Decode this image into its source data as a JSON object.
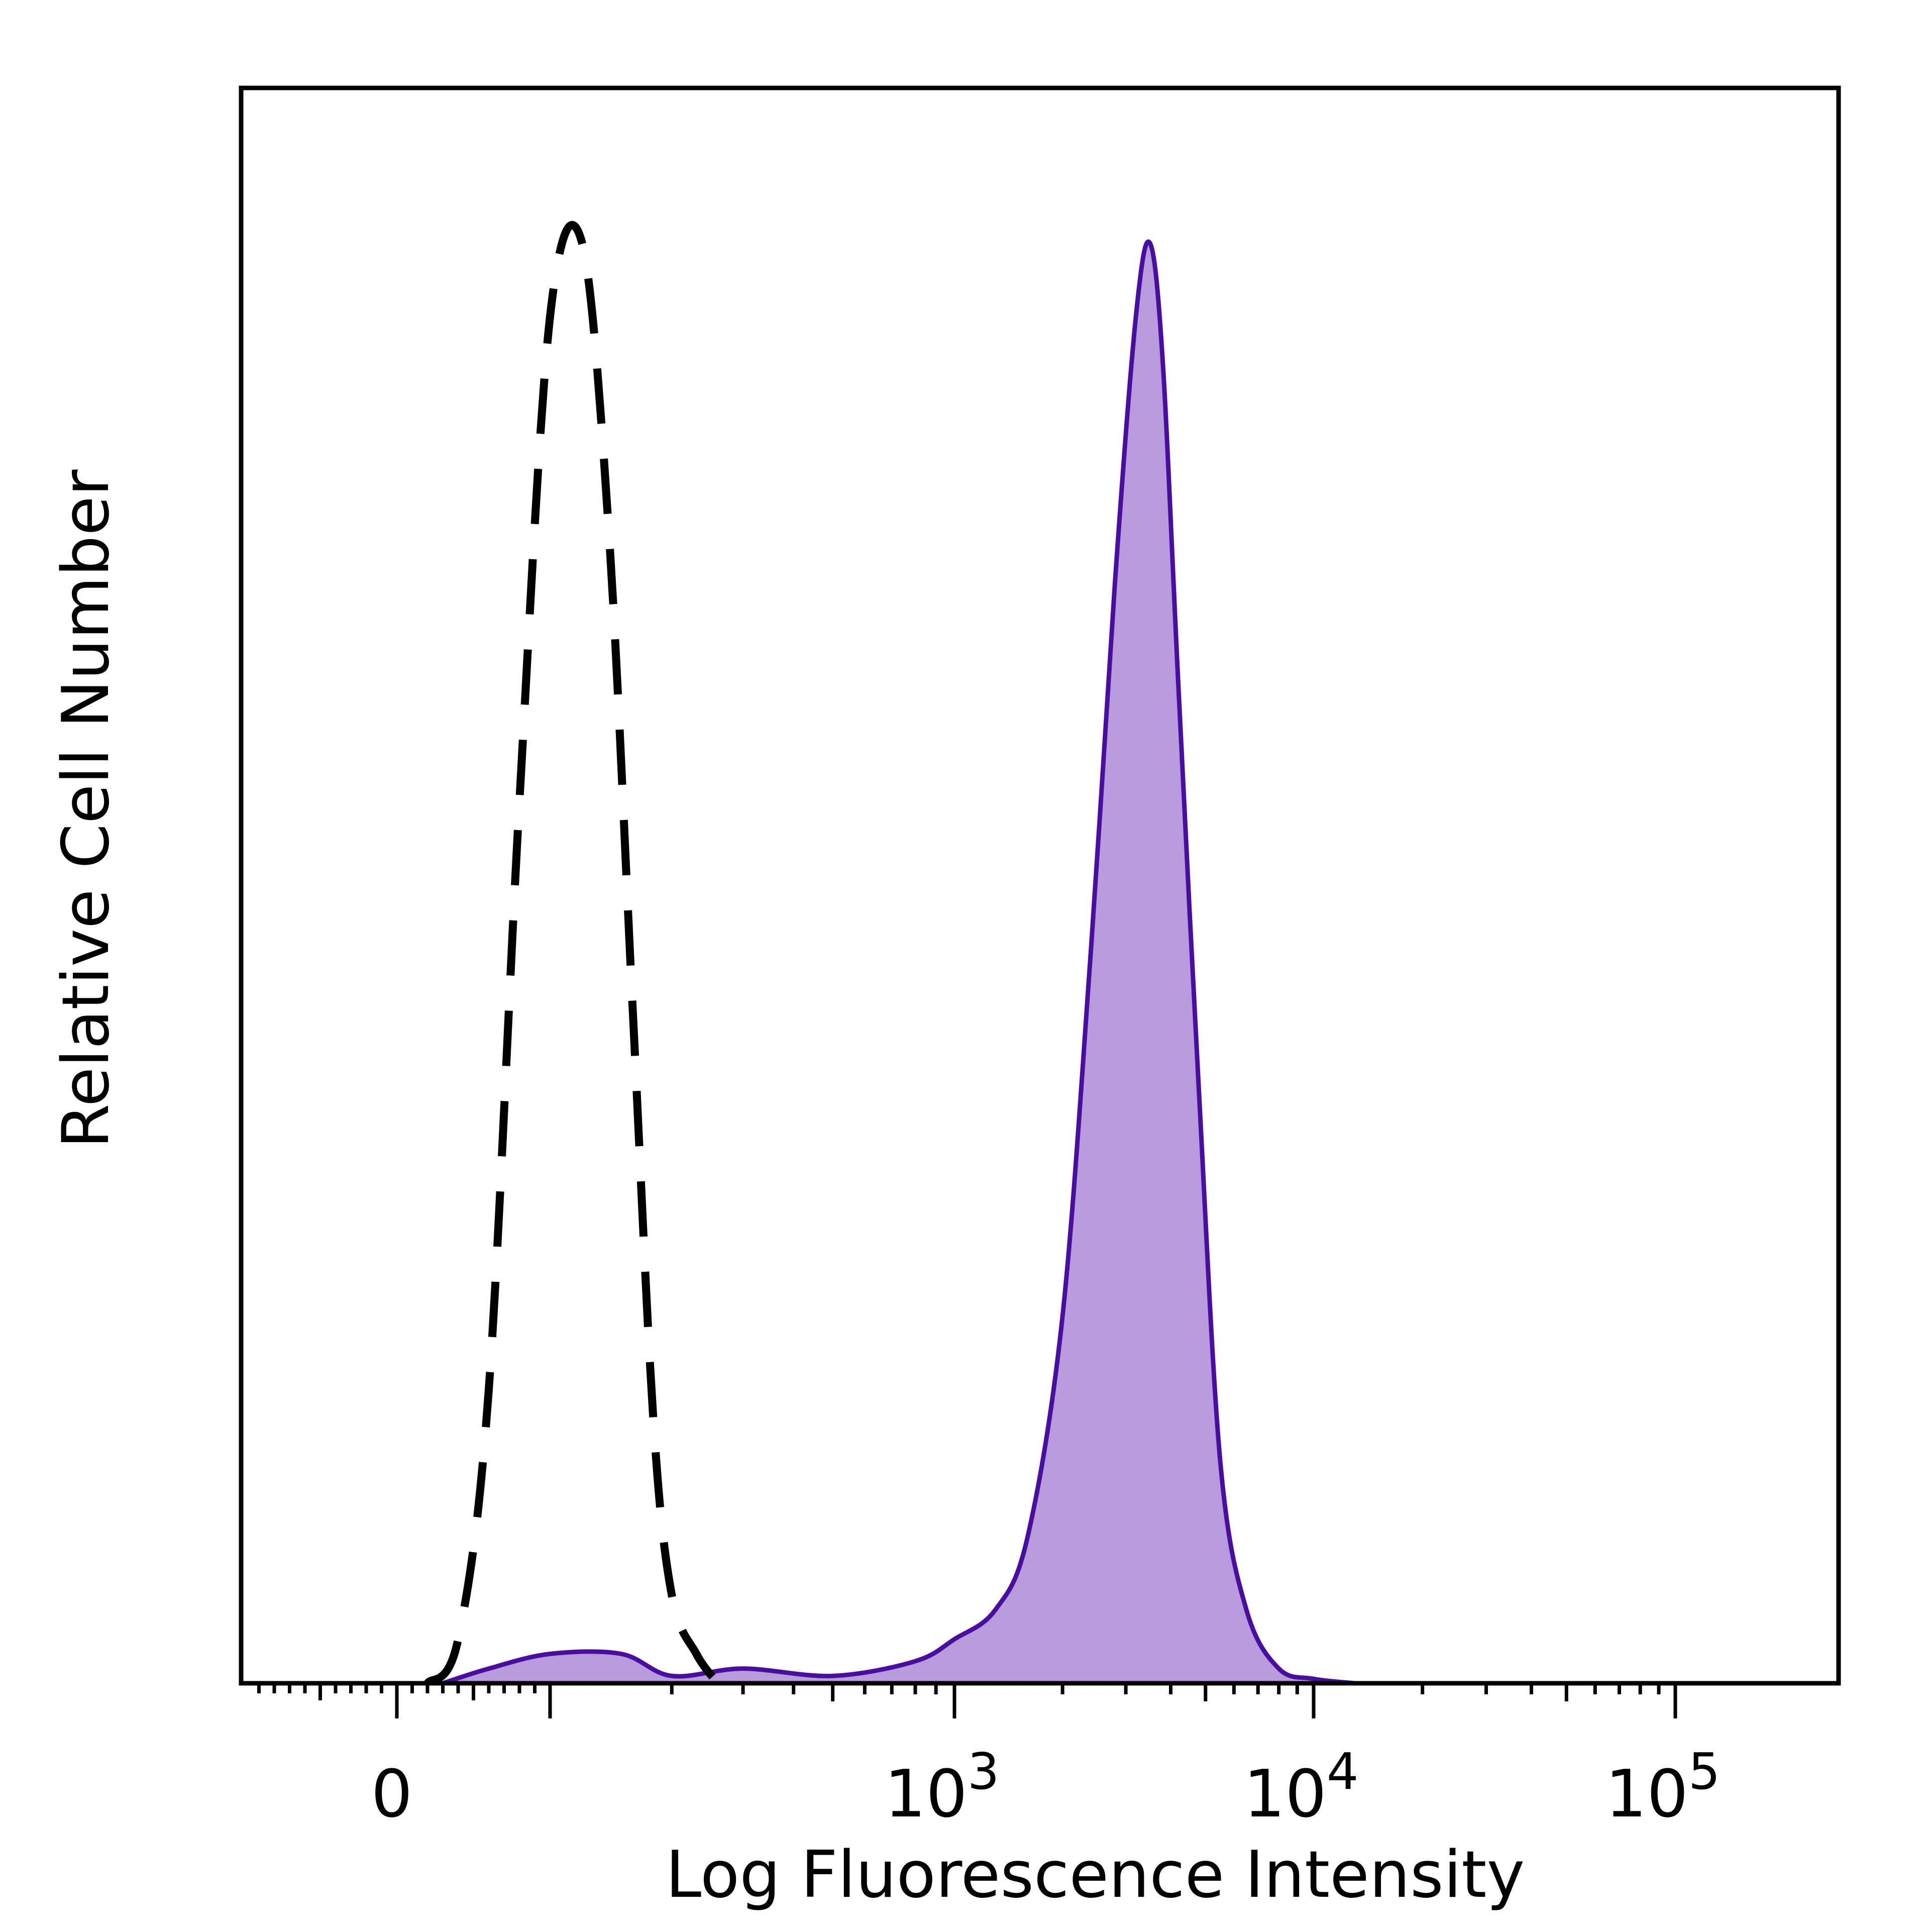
{
  "chart_data": {
    "type": "area",
    "title": "",
    "xlabel": "Log Fluorescence Intensity",
    "ylabel": "Relative Cell Number",
    "x_scale": "biexponential (linear near 0, log above ~10^2)",
    "x_ticks": [
      {
        "base": "0",
        "exp": "",
        "value": 0
      },
      {
        "base": "10",
        "exp": "3",
        "value": 1000
      },
      {
        "base": "10",
        "exp": "4",
        "value": 10000
      },
      {
        "base": "10",
        "exp": "5",
        "value": 100000
      }
    ],
    "y_ticks": [],
    "ylim": [
      0,
      1.0
    ],
    "grid": false,
    "legend": "none",
    "colors": {
      "stained_fill": "#b79bdc",
      "stained_line": "#4a0e9e",
      "control_line": "#000000",
      "frame": "#000000"
    },
    "series": [
      {
        "style": "dashed black outline (isotype control)",
        "x": [
          20,
          40,
          60,
          80,
          100,
          120,
          140,
          160,
          180,
          200,
          230,
          260
        ],
        "y": [
          0.0,
          0.03,
          0.2,
          0.6,
          0.93,
          0.98,
          0.78,
          0.46,
          0.18,
          0.06,
          0.02,
          0.0
        ]
      },
      {
        "style": "purple filled (stained)",
        "x": [
          30,
          60,
          100,
          150,
          200,
          300,
          500,
          800,
          1000,
          1300,
          1600,
          2000,
          2400,
          2800,
          3200,
          3500,
          3800,
          4200,
          4800,
          5500,
          6500,
          8000,
          10000,
          13000
        ],
        "y": [
          0.0,
          0.01,
          0.02,
          0.02,
          0.005,
          0.01,
          0.005,
          0.015,
          0.03,
          0.05,
          0.1,
          0.25,
          0.5,
          0.75,
          0.93,
          0.98,
          0.9,
          0.68,
          0.4,
          0.15,
          0.05,
          0.01,
          0.003,
          0.0
        ]
      }
    ]
  }
}
